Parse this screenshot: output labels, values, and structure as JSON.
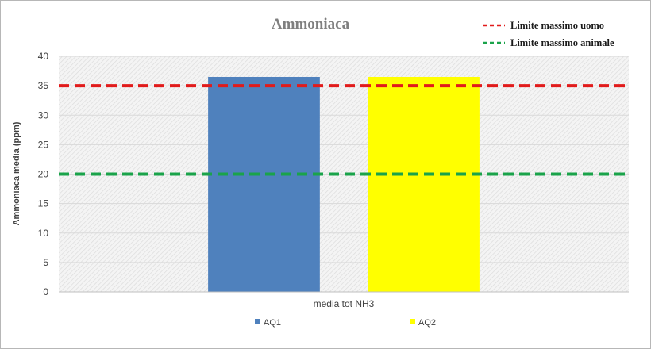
{
  "chart_data": {
    "type": "bar",
    "title": "Ammoniaca",
    "ylabel": "Ammoniaca media (ppm)",
    "categories": [
      "media tot NH3"
    ],
    "series": [
      {
        "name": "AQ1",
        "values": [
          36.5
        ],
        "color": "#4f81bd"
      },
      {
        "name": "AQ2",
        "values": [
          36.5
        ],
        "color": "#ffff00"
      }
    ],
    "ylim": [
      0,
      40
    ],
    "yticks": [
      0,
      5,
      10,
      15,
      20,
      25,
      30,
      35,
      40
    ],
    "grid": true,
    "legend": "bottom",
    "reference_lines": [
      {
        "name": "Limite massimo uomo",
        "value": 35,
        "color": "#e11b1b"
      },
      {
        "name": "Limite massimo animale",
        "value": 20,
        "color": "#1aa34a"
      }
    ],
    "reference_legend": "top-right",
    "plot_background": "hatched light gray"
  }
}
